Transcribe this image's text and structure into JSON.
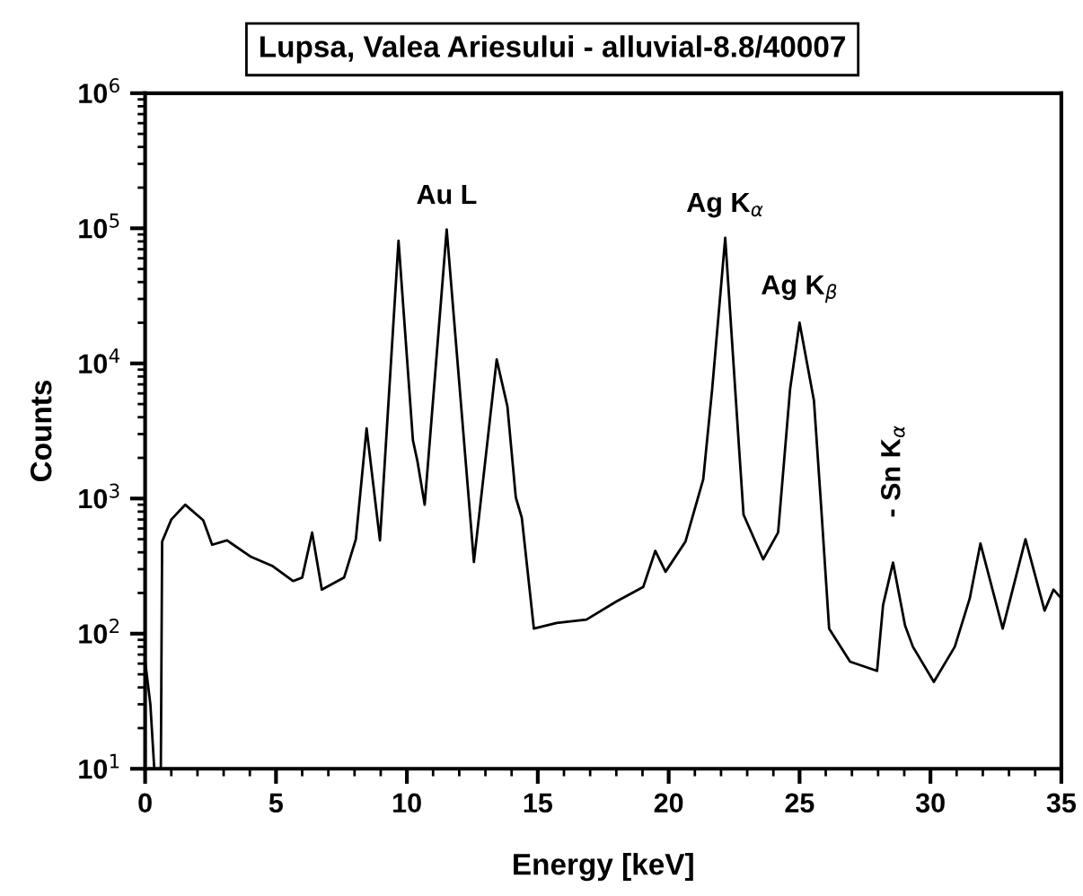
{
  "chart_data": {
    "type": "line",
    "title": "Lupsa, Valea Ariesului - alluvial-8.8/40007",
    "xlabel": "Energy [keV]",
    "ylabel": "Counts",
    "x": [
      0,
      0.2,
      0.35,
      0.6,
      0.65,
      1.0,
      1.53,
      2.22,
      2.56,
      3.13,
      4.05,
      4.85,
      5.65,
      6.0,
      6.38,
      6.75,
      7.6,
      8.05,
      8.46,
      8.97,
      9.68,
      10.23,
      10.4,
      10.68,
      11.52,
      12.56,
      13.43,
      13.84,
      14.16,
      14.39,
      14.85,
      15.72,
      16.86,
      18.0,
      19.03,
      19.49,
      19.88,
      20.64,
      21.32,
      21.66,
      22.16,
      22.69,
      22.86,
      23.61,
      24.18,
      24.64,
      25.0,
      25.55,
      25.83,
      26.13,
      26.93,
      27.96,
      28.19,
      28.57,
      29.03,
      29.33,
      30.13,
      30.93,
      31.5,
      31.91,
      32.76,
      32.99,
      33.63,
      34.36,
      34.7,
      35
    ],
    "series": [
      {
        "color": "#000000",
        "values": [
          63,
          30,
          10,
          10,
          480,
          700,
          900,
          690,
          455,
          490,
          370,
          318,
          245,
          260,
          560,
          212,
          260,
          500,
          3300,
          490,
          81000,
          2700,
          1900,
          900,
          98000,
          340,
          10700,
          4800,
          1020,
          720,
          109,
          120,
          127,
          173,
          222,
          410,
          287,
          480,
          1390,
          6400,
          85000,
          2350,
          760,
          355,
          560,
          6500,
          20000,
          5300,
          840,
          109,
          62,
          53,
          163,
          336,
          115,
          80,
          44,
          80,
          182,
          465,
          109,
          163,
          500,
          148,
          212,
          182
        ]
      }
    ],
    "log": "y",
    "xlim": [
      0,
      35
    ],
    "xticks": [
      0,
      5,
      10,
      15,
      20,
      25,
      30,
      35
    ],
    "ylim": [
      10,
      1000000
    ],
    "yticks": [
      {
        "value": 10,
        "label": "10$^{1}$"
      },
      {
        "value": 100,
        "label": "10$^{2}$"
      },
      {
        "value": 1000,
        "label": "10$^{3}$"
      },
      {
        "value": 10000,
        "label": "10$^{4}$"
      },
      {
        "value": 100000,
        "label": "10$^{5}$"
      },
      {
        "value": 1000000,
        "label": "10$^{6}$"
      }
    ],
    "grid": false,
    "legend": false,
    "marker": "none",
    "line_style": "solid",
    "annotations": [
      {
        "text": "Au L",
        "x": 11.52,
        "y": 98000
      },
      {
        "text": "Ag K$_{α}$",
        "x": 22.16,
        "y": 85000
      },
      {
        "text": "Ag K$_{β}$",
        "x": 25.0,
        "y": 20000
      },
      {
        "text": "- Sn K$_{α}$",
        "x": 28.57,
        "y": 336
      }
    ]
  }
}
